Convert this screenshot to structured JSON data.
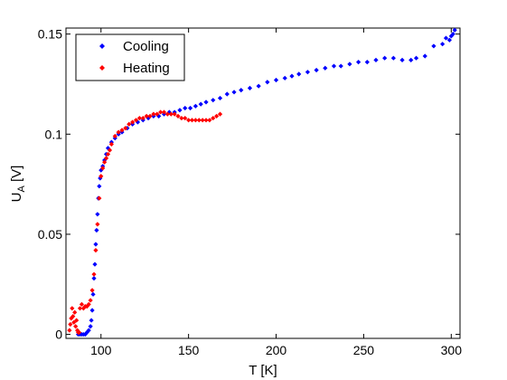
{
  "chart_data": {
    "type": "scatter",
    "xlabel": "T [K]",
    "ylabel": {
      "main": "U",
      "sub": "A",
      "unit": " [V]"
    },
    "xlim": [
      80,
      305
    ],
    "ylim": [
      -0.002,
      0.153
    ],
    "x_ticks": [
      100,
      150,
      200,
      250,
      300
    ],
    "y_ticks": [
      0,
      0.05,
      0.1,
      0.15
    ],
    "x_tick_labels": [
      "100",
      "150",
      "200",
      "250",
      "300"
    ],
    "y_tick_labels": [
      "0",
      "0.05",
      "0.1",
      "0.15"
    ],
    "grid": false,
    "legend_position": "top-left",
    "series": [
      {
        "name": "Cooling",
        "color": "#0000ff",
        "marker": "diamond",
        "points": [
          [
            302,
            0.152
          ],
          [
            301,
            0.15
          ],
          [
            300,
            0.149
          ],
          [
            299,
            0.147
          ],
          [
            297,
            0.148
          ],
          [
            295,
            0.145
          ],
          [
            290,
            0.144
          ],
          [
            285,
            0.139
          ],
          [
            280,
            0.138
          ],
          [
            277,
            0.137
          ],
          [
            272,
            0.137
          ],
          [
            267,
            0.138
          ],
          [
            262,
            0.138
          ],
          [
            257,
            0.137
          ],
          [
            252,
            0.136
          ],
          [
            247,
            0.136
          ],
          [
            242,
            0.135
          ],
          [
            237,
            0.134
          ],
          [
            233,
            0.134
          ],
          [
            228,
            0.133
          ],
          [
            223,
            0.132
          ],
          [
            218,
            0.131
          ],
          [
            213,
            0.13
          ],
          [
            209,
            0.129
          ],
          [
            205,
            0.128
          ],
          [
            200,
            0.127
          ],
          [
            195,
            0.126
          ],
          [
            190,
            0.124
          ],
          [
            185,
            0.123
          ],
          [
            180,
            0.122
          ],
          [
            176,
            0.121
          ],
          [
            172,
            0.12
          ],
          [
            168,
            0.118
          ],
          [
            164,
            0.117
          ],
          [
            160,
            0.116
          ],
          [
            157,
            0.115
          ],
          [
            154,
            0.114
          ],
          [
            151,
            0.113
          ],
          [
            148,
            0.113
          ],
          [
            145,
            0.112
          ],
          [
            142,
            0.111
          ],
          [
            139,
            0.111
          ],
          [
            136,
            0.11
          ],
          [
            133,
            0.109
          ],
          [
            130,
            0.109
          ],
          [
            127,
            0.108
          ],
          [
            124,
            0.107
          ],
          [
            121,
            0.106
          ],
          [
            118,
            0.105
          ],
          [
            115,
            0.103
          ],
          [
            112,
            0.101
          ],
          [
            110,
            0.1
          ],
          [
            108,
            0.098
          ],
          [
            106,
            0.096
          ],
          [
            104,
            0.093
          ],
          [
            103,
            0.09
          ],
          [
            102,
            0.087
          ],
          [
            101,
            0.084
          ],
          [
            100,
            0.082
          ],
          [
            99.5,
            0.078
          ],
          [
            99,
            0.074
          ],
          [
            98.5,
            0.068
          ],
          [
            98,
            0.06
          ],
          [
            97.5,
            0.052
          ],
          [
            97,
            0.045
          ],
          [
            96.5,
            0.035
          ],
          [
            96,
            0.028
          ],
          [
            95.5,
            0.02
          ],
          [
            95,
            0.012
          ],
          [
            94.5,
            0.007
          ],
          [
            94,
            0.004
          ],
          [
            93,
            0.002
          ],
          [
            92,
            0.001
          ],
          [
            91,
            0.0
          ],
          [
            90,
            0.0
          ],
          [
            89,
            0.0
          ],
          [
            88,
            0.0
          ],
          [
            87,
            0.0
          ]
        ]
      },
      {
        "name": "Heating",
        "color": "#ff0000",
        "marker": "diamond",
        "points": [
          [
            82,
            0.002
          ],
          [
            82.5,
            0.005
          ],
          [
            83,
            0.008
          ],
          [
            83.5,
            0.013
          ],
          [
            84,
            0.009
          ],
          [
            84.5,
            0.006
          ],
          [
            85,
            0.011
          ],
          [
            85.5,
            0.004
          ],
          [
            86,
            0.007
          ],
          [
            86.5,
            0.002
          ],
          [
            87,
            0.001
          ],
          [
            87.5,
            0.001
          ],
          [
            88,
            0.013
          ],
          [
            89,
            0.015
          ],
          [
            90,
            0.013
          ],
          [
            91,
            0.014
          ],
          [
            92,
            0.014
          ],
          [
            93,
            0.015
          ],
          [
            94,
            0.017
          ],
          [
            95,
            0.022
          ],
          [
            96,
            0.03
          ],
          [
            97,
            0.042
          ],
          [
            98,
            0.055
          ],
          [
            99,
            0.068
          ],
          [
            100,
            0.079
          ],
          [
            101,
            0.083
          ],
          [
            102,
            0.086
          ],
          [
            103,
            0.088
          ],
          [
            104,
            0.09
          ],
          [
            105,
            0.092
          ],
          [
            106,
            0.095
          ],
          [
            108,
            0.099
          ],
          [
            110,
            0.101
          ],
          [
            112,
            0.102
          ],
          [
            114,
            0.103
          ],
          [
            116,
            0.105
          ],
          [
            118,
            0.106
          ],
          [
            120,
            0.107
          ],
          [
            122,
            0.108
          ],
          [
            124,
            0.108
          ],
          [
            126,
            0.109
          ],
          [
            128,
            0.109
          ],
          [
            130,
            0.11
          ],
          [
            132,
            0.11
          ],
          [
            134,
            0.111
          ],
          [
            136,
            0.111
          ],
          [
            138,
            0.11
          ],
          [
            140,
            0.11
          ],
          [
            142,
            0.11
          ],
          [
            144,
            0.109
          ],
          [
            146,
            0.108
          ],
          [
            148,
            0.108
          ],
          [
            150,
            0.107
          ],
          [
            152,
            0.107
          ],
          [
            154,
            0.107
          ],
          [
            156,
            0.107
          ],
          [
            158,
            0.107
          ],
          [
            160,
            0.107
          ],
          [
            162,
            0.107
          ],
          [
            164,
            0.108
          ],
          [
            166,
            0.109
          ],
          [
            168,
            0.11
          ]
        ]
      }
    ]
  }
}
